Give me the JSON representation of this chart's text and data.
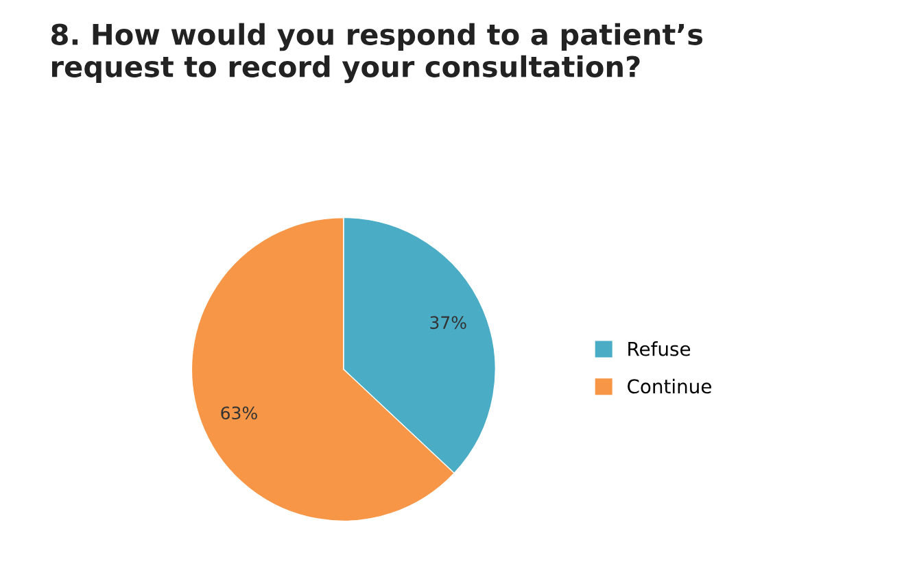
{
  "chart_data": {
    "type": "pie",
    "title": "8. How would you respond to a patient’s\nrequest to record your consultation?",
    "categories": [
      "Refuse",
      "Continue"
    ],
    "values": [
      37,
      63
    ],
    "value_labels": [
      "37%",
      "63%"
    ],
    "colors": [
      "#4bacc6",
      "#f79646"
    ],
    "legend": "right"
  }
}
